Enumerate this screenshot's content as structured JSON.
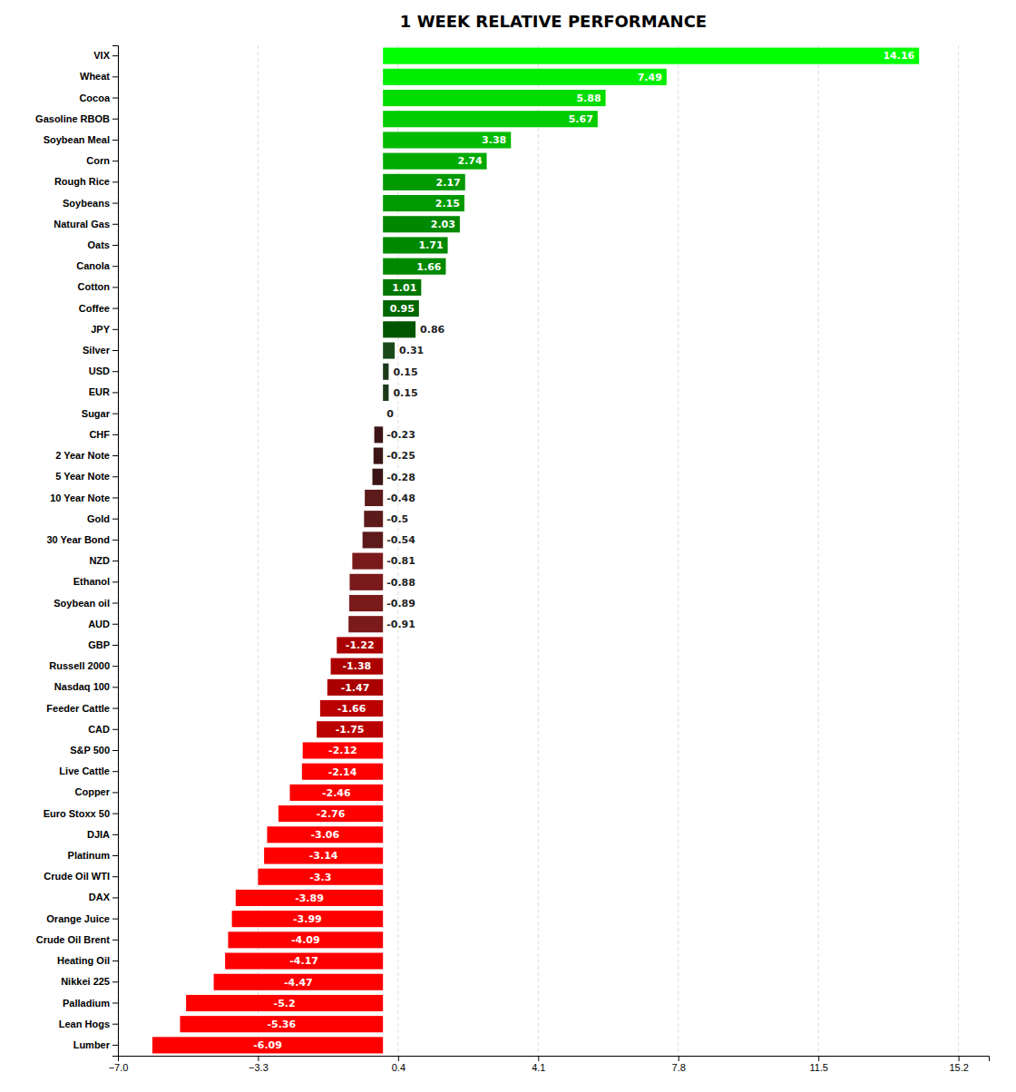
{
  "chart_data": {
    "type": "bar",
    "orientation": "horizontal",
    "title": "1 WEEK RELATIVE PERFORMANCE",
    "categories": [
      "VIX",
      "Wheat",
      "Cocoa",
      "Gasoline RBOB",
      "Soybean Meal",
      "Corn",
      "Rough Rice",
      "Soybeans",
      "Natural Gas",
      "Oats",
      "Canola",
      "Cotton",
      "Coffee",
      "JPY",
      "Silver",
      "USD",
      "EUR",
      "Sugar",
      "CHF",
      "2 Year Note",
      "5 Year Note",
      "10 Year Note",
      "Gold",
      "30 Year Bond",
      "NZD",
      "Ethanol",
      "Soybean oil",
      "AUD",
      "GBP",
      "Russell 2000",
      "Nasdaq 100",
      "Feeder Cattle",
      "CAD",
      "S&P 500",
      "Live Cattle",
      "Copper",
      "Euro Stoxx 50",
      "DJIA",
      "Platinum",
      "Crude Oil WTI",
      "DAX",
      "Orange Juice",
      "Crude Oil Brent",
      "Heating Oil",
      "Nikkei 225",
      "Palladium",
      "Lean Hogs",
      "Lumber"
    ],
    "values": [
      14.16,
      7.49,
      5.88,
      5.67,
      3.38,
      2.74,
      2.17,
      2.15,
      2.03,
      1.71,
      1.66,
      1.01,
      0.95,
      0.86,
      0.31,
      0.15,
      0.15,
      0.0,
      -0.23,
      -0.25,
      -0.28,
      -0.48,
      -0.5,
      -0.54,
      -0.81,
      -0.88,
      -0.89,
      -0.91,
      -1.22,
      -1.38,
      -1.47,
      -1.66,
      -1.75,
      -2.12,
      -2.14,
      -2.46,
      -2.76,
      -3.06,
      -3.14,
      -3.3,
      -3.89,
      -3.99,
      -4.09,
      -4.17,
      -4.47,
      -5.2,
      -5.36,
      -6.09
    ],
    "colors": [
      "#00FF00",
      "#00EE00",
      "#00DD00",
      "#00CC00",
      "#00BB00",
      "#00AA00",
      "#009900",
      "#009900",
      "#008800",
      "#008800",
      "#008800",
      "#007700",
      "#006600",
      "#005500",
      "#1A4A1A",
      "#1A3A1A",
      "#1A3A1A",
      "#000000",
      "#3B1515",
      "#3B1515",
      "#3B1515",
      "#5C1A1A",
      "#5C1A1A",
      "#5C1A1A",
      "#7A1A1A",
      "#7A1A1A",
      "#7A1A1A",
      "#7A1A1A",
      "#AA0000",
      "#AA0000",
      "#AA0000",
      "#BB0000",
      "#BB0000",
      "#FF0000",
      "#FF0000",
      "#FF0000",
      "#FF0000",
      "#FF0000",
      "#FF0000",
      "#FF0000",
      "#FF0000",
      "#FF0000",
      "#FF0000",
      "#FF0000",
      "#FF0000",
      "#FF0000",
      "#FF0000",
      "#FF0000"
    ],
    "xlim": [
      -7.0,
      16.0
    ],
    "xticks": [
      {
        "value": -7.0,
        "label": "−7.0"
      },
      {
        "value": -3.3,
        "label": "−3.3"
      },
      0.4,
      4.1,
      7.8,
      11.5,
      15.2
    ],
    "grid": true,
    "data_labels": true
  }
}
